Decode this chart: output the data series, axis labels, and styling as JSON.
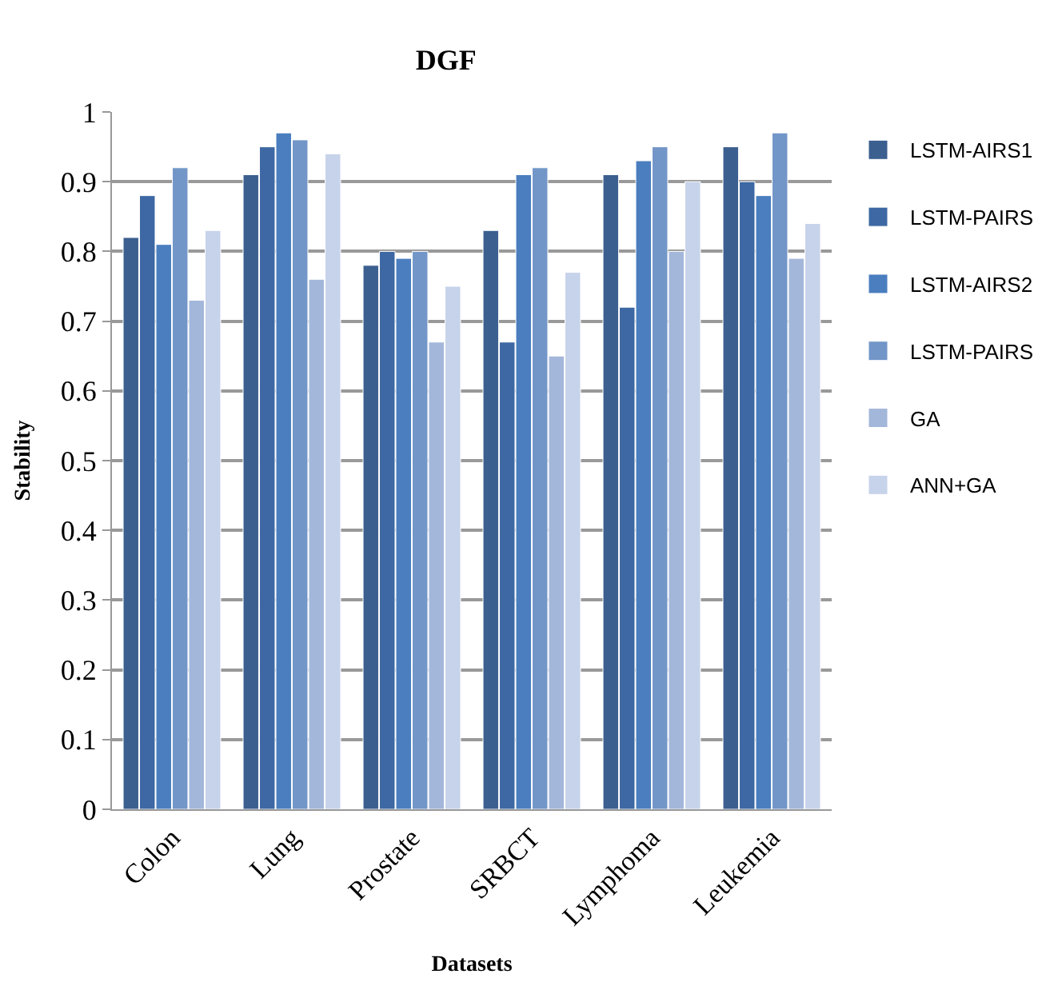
{
  "chart_data": {
    "type": "bar",
    "title": "DGF",
    "xlabel": "Datasets",
    "ylabel": "Stability",
    "categories": [
      "Colon",
      "Lung",
      "Prostate",
      "SRBCT",
      "Lymphoma",
      "Leukemia"
    ],
    "series": [
      {
        "name": "LSTM-AIRS1",
        "color": "#3b5f8f",
        "values": [
          0.82,
          0.91,
          0.78,
          0.83,
          0.91,
          0.95
        ]
      },
      {
        "name": "LSTM-PAIRS",
        "color": "#3d68a3",
        "values": [
          0.88,
          0.95,
          0.8,
          0.67,
          0.72,
          0.9
        ]
      },
      {
        "name": "LSTM-AIRS2",
        "color": "#4a7ebf",
        "values": [
          0.81,
          0.97,
          0.79,
          0.91,
          0.93,
          0.88
        ]
      },
      {
        "name": "LSTM-PAIRS",
        "color": "#7296c8",
        "values": [
          0.92,
          0.96,
          0.8,
          0.92,
          0.95,
          0.97
        ]
      },
      {
        "name": "GA",
        "color": "#a3b7da",
        "values": [
          0.73,
          0.76,
          0.67,
          0.65,
          0.8,
          0.79
        ]
      },
      {
        "name": "ANN+GA",
        "color": "#c7d3ea",
        "values": [
          0.83,
          0.94,
          0.75,
          0.77,
          0.9,
          0.84
        ]
      }
    ],
    "ylim": [
      0,
      1
    ],
    "yticks": [
      0,
      0.1,
      0.2,
      0.3,
      0.4,
      0.5,
      0.6,
      0.7,
      0.8,
      0.9,
      1
    ],
    "grid": "y",
    "legend": "right"
  }
}
